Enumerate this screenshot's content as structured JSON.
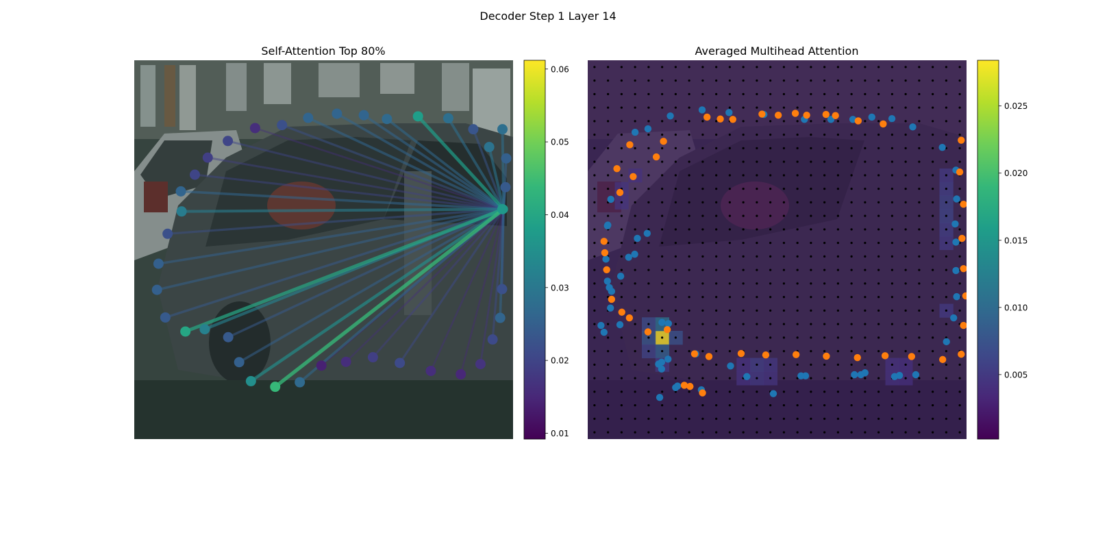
{
  "figure": {
    "title": "Decoder Step 1 Layer 14"
  },
  "colors": {
    "viridis": [
      "#440154",
      "#482878",
      "#3e4989",
      "#31688e",
      "#26828e",
      "#1f9e89",
      "#35b779",
      "#6ece58",
      "#b5de2b",
      "#fde725"
    ],
    "pred_points": "#1f77b4",
    "gt_points": "#ff7f0e",
    "grid_dots": "#000000",
    "photo_overlay": "#3b1e5a"
  },
  "chart_data": [
    {
      "type": "scatter",
      "title": "Self-Attention Top 80%",
      "description_kind": "attention-graph",
      "query_point": [
        975,
        393
      ],
      "xlim": [
        0,
        1000
      ],
      "ylim": [
        1000,
        0
      ],
      "colorbar": {
        "ticks": [
          "0.01",
          "0.02",
          "0.03",
          "0.04",
          "0.05",
          "0.06"
        ],
        "tick_values": [
          0.01,
          0.02,
          0.03,
          0.04,
          0.05,
          0.06
        ],
        "vmin": 0.0092,
        "vmax": 0.0612
      },
      "points": [
        {
          "x": 972,
          "y": 393,
          "w": 0.037
        },
        {
          "x": 980,
          "y": 335,
          "w": 0.024
        },
        {
          "x": 982,
          "y": 259,
          "w": 0.025
        },
        {
          "x": 972,
          "y": 182,
          "w": 0.028
        },
        {
          "x": 937,
          "y": 229,
          "w": 0.029
        },
        {
          "x": 895,
          "y": 182,
          "w": 0.023
        },
        {
          "x": 829,
          "y": 153,
          "w": 0.028
        },
        {
          "x": 749,
          "y": 148,
          "w": 0.038
        },
        {
          "x": 667,
          "y": 155,
          "w": 0.027
        },
        {
          "x": 606,
          "y": 145,
          "w": 0.026
        },
        {
          "x": 535,
          "y": 141,
          "w": 0.026
        },
        {
          "x": 459,
          "y": 152,
          "w": 0.026
        },
        {
          "x": 390,
          "y": 171,
          "w": 0.022
        },
        {
          "x": 319,
          "y": 179,
          "w": 0.016
        },
        {
          "x": 247,
          "y": 213,
          "w": 0.02
        },
        {
          "x": 194,
          "y": 257,
          "w": 0.019
        },
        {
          "x": 160,
          "y": 302,
          "w": 0.02
        },
        {
          "x": 123,
          "y": 346,
          "w": 0.026
        },
        {
          "x": 125,
          "y": 399,
          "w": 0.031
        },
        {
          "x": 88,
          "y": 458,
          "w": 0.022
        },
        {
          "x": 64,
          "y": 537,
          "w": 0.025
        },
        {
          "x": 60,
          "y": 606,
          "w": 0.025
        },
        {
          "x": 82,
          "y": 679,
          "w": 0.024
        },
        {
          "x": 135,
          "y": 716,
          "w": 0.04
        },
        {
          "x": 186,
          "y": 710,
          "w": 0.032
        },
        {
          "x": 248,
          "y": 731,
          "w": 0.024
        },
        {
          "x": 277,
          "y": 797,
          "w": 0.025
        },
        {
          "x": 308,
          "y": 847,
          "w": 0.035
        },
        {
          "x": 372,
          "y": 862,
          "w": 0.044
        },
        {
          "x": 437,
          "y": 850,
          "w": 0.027
        },
        {
          "x": 494,
          "y": 806,
          "w": 0.014
        },
        {
          "x": 559,
          "y": 796,
          "w": 0.016
        },
        {
          "x": 630,
          "y": 784,
          "w": 0.019
        },
        {
          "x": 701,
          "y": 799,
          "w": 0.021
        },
        {
          "x": 783,
          "y": 820,
          "w": 0.016
        },
        {
          "x": 862,
          "y": 829,
          "w": 0.015
        },
        {
          "x": 914,
          "y": 802,
          "w": 0.017
        },
        {
          "x": 946,
          "y": 737,
          "w": 0.021
        },
        {
          "x": 966,
          "y": 680,
          "w": 0.026
        },
        {
          "x": 971,
          "y": 604,
          "w": 0.022
        }
      ]
    },
    {
      "type": "heatmap",
      "title": "Averaged Multihead Attention",
      "xlim": [
        0,
        1000
      ],
      "ylim": [
        1000,
        0
      ],
      "colorbar": {
        "ticks": [
          "0.005",
          "0.010",
          "0.015",
          "0.020",
          "0.025"
        ],
        "tick_values": [
          0.005,
          0.01,
          0.015,
          0.02,
          0.025
        ],
        "vmin": 0.0002,
        "vmax": 0.0284
      },
      "grid": {
        "rows": 28,
        "cols": 28
      },
      "hot_cells": [
        {
          "r": 20,
          "c": 5,
          "v": 0.0284
        },
        {
          "r": 19,
          "c": 5,
          "v": 0.011
        },
        {
          "r": 21,
          "c": 5,
          "v": 0.009
        },
        {
          "r": 20,
          "c": 4,
          "v": 0.008
        },
        {
          "r": 19,
          "c": 4,
          "v": 0.007
        },
        {
          "r": 20,
          "c": 6,
          "v": 0.0075
        },
        {
          "r": 21,
          "c": 4,
          "v": 0.006
        },
        {
          "r": 22,
          "c": 5,
          "v": 0.005
        },
        {
          "r": 10,
          "c": 26,
          "v": 0.006
        },
        {
          "r": 11,
          "c": 26,
          "v": 0.006
        },
        {
          "r": 9,
          "c": 26,
          "v": 0.0055
        },
        {
          "r": 12,
          "c": 26,
          "v": 0.0055
        },
        {
          "r": 8,
          "c": 26,
          "v": 0.005
        },
        {
          "r": 13,
          "c": 26,
          "v": 0.005
        },
        {
          "r": 18,
          "c": 26,
          "v": 0.005
        },
        {
          "r": 22,
          "c": 12,
          "v": 0.0055
        },
        {
          "r": 23,
          "c": 12,
          "v": 0.005
        },
        {
          "r": 22,
          "c": 13,
          "v": 0.0048
        },
        {
          "r": 23,
          "c": 13,
          "v": 0.0045
        },
        {
          "r": 22,
          "c": 11,
          "v": 0.0042
        },
        {
          "r": 23,
          "c": 11,
          "v": 0.0042
        },
        {
          "r": 22,
          "c": 22,
          "v": 0.0042
        },
        {
          "r": 23,
          "c": 22,
          "v": 0.0042
        },
        {
          "r": 22,
          "c": 23,
          "v": 0.004
        },
        {
          "r": 23,
          "c": 23,
          "v": 0.004
        },
        {
          "r": 9,
          "c": 2,
          "v": 0.0045
        },
        {
          "r": 10,
          "c": 2,
          "v": 0.0045
        },
        {
          "r": 8,
          "c": 3,
          "v": 0.0042
        }
      ],
      "series": [
        {
          "name": "",
          "color_key": "pred_points",
          "points": [
            [
              125,
              190
            ],
            [
              159,
              181
            ],
            [
              218,
              147
            ],
            [
              302,
              131
            ],
            [
              373,
              138
            ],
            [
              465,
              143
            ],
            [
              572,
              156
            ],
            [
              642,
              156
            ],
            [
              700,
              156
            ],
            [
              750,
              150
            ],
            [
              803,
              154
            ],
            [
              858,
              176
            ],
            [
              936,
              230
            ],
            [
              972,
              290
            ],
            [
              974,
              366
            ],
            [
              970,
              432
            ],
            [
              972,
              480
            ],
            [
              972,
              555
            ],
            [
              974,
              624
            ],
            [
              966,
              680
            ],
            [
              947,
              743
            ],
            [
              866,
              830
            ],
            [
              823,
              832
            ],
            [
              810,
              835
            ],
            [
              732,
              825
            ],
            [
              721,
              830
            ],
            [
              704,
              830
            ],
            [
              575,
              833
            ],
            [
              563,
              833
            ],
            [
              490,
              880
            ],
            [
              420,
              835
            ],
            [
              377,
              807
            ],
            [
              285,
              775
            ],
            [
              232,
              864
            ],
            [
              237,
              860
            ],
            [
              300,
              870
            ],
            [
              195,
              797
            ],
            [
              212,
              789
            ],
            [
              196,
              692
            ],
            [
              213,
              695
            ],
            [
              195,
              815
            ],
            [
              190,
              890
            ],
            [
              187,
              802
            ],
            [
              85,
              698
            ],
            [
              60,
              654
            ],
            [
              52,
              583
            ],
            [
              48,
              525
            ],
            [
              61,
              367
            ],
            [
              53,
              435
            ],
            [
              52,
              437
            ],
            [
              35,
              700
            ],
            [
              43,
              718
            ],
            [
              57,
              600
            ],
            [
              63,
              610
            ],
            [
              87,
              570
            ],
            [
              108,
              520
            ],
            [
              131,
              470
            ],
            [
              124,
              512
            ],
            [
              157,
              457
            ]
          ]
        },
        {
          "name": "",
          "color_key": "gt_points",
          "points": [
            [
              315,
              150
            ],
            [
              350,
              155
            ],
            [
              383,
              156
            ],
            [
              460,
              142
            ],
            [
              548,
              140
            ],
            [
              503,
              145
            ],
            [
              578,
              145
            ],
            [
              629,
              143
            ],
            [
              654,
              146
            ],
            [
              714,
              160
            ],
            [
              780,
              168
            ],
            [
              986,
              211
            ],
            [
              982,
              295
            ],
            [
              992,
              380
            ],
            [
              988,
              470
            ],
            [
              992,
              550
            ],
            [
              998,
              622
            ],
            [
              992,
              700
            ],
            [
              986,
              776
            ],
            [
              937,
              790
            ],
            [
              855,
              782
            ],
            [
              785,
              780
            ],
            [
              712,
              785
            ],
            [
              630,
              781
            ],
            [
              550,
              777
            ],
            [
              470,
              778
            ],
            [
              405,
              774
            ],
            [
              320,
              782
            ],
            [
              282,
              775
            ],
            [
              270,
              861
            ],
            [
              303,
              878
            ],
            [
              255,
              858
            ],
            [
              210,
              711
            ],
            [
              159,
              717
            ],
            [
              110,
              680
            ],
            [
              90,
              665
            ],
            [
              63,
              631
            ],
            [
              50,
              553
            ],
            [
              45,
              508
            ],
            [
              43,
              478
            ],
            [
              85,
              349
            ],
            [
              77,
              286
            ],
            [
              111,
              223
            ],
            [
              120,
              307
            ],
            [
              181,
              255
            ],
            [
              200,
              214
            ]
          ]
        }
      ]
    }
  ]
}
